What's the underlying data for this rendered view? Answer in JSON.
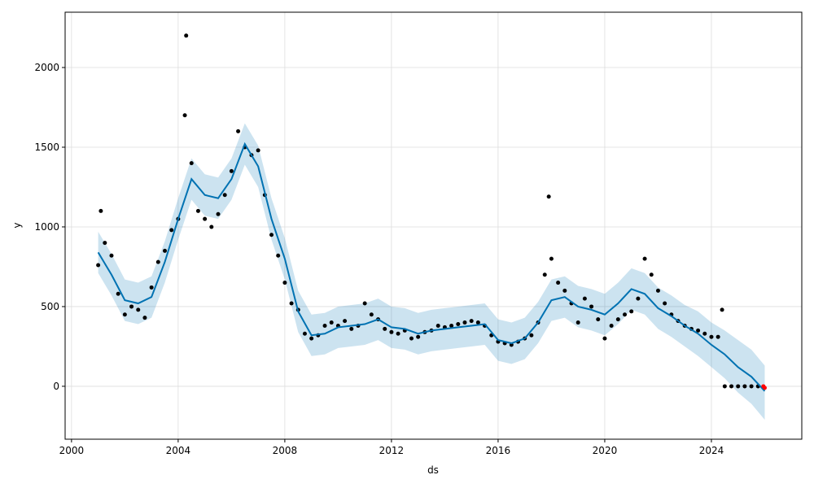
{
  "chart_data": {
    "type": "line",
    "xlabel": "ds",
    "ylabel": "y",
    "xlim": [
      1999.76,
      2027.39
    ],
    "ylim": [
      -332,
      2347
    ],
    "xticks": [
      2000,
      2004,
      2008,
      2012,
      2016,
      2020,
      2024
    ],
    "yticks": [
      0,
      500,
      1000,
      1500,
      2000
    ],
    "grid": true,
    "series": [
      {
        "type": "band",
        "color": "#0072B2",
        "x": [
          2001.0,
          2001.5,
          2002.0,
          2002.5,
          2003.0,
          2003.5,
          2004.0,
          2004.5,
          2005.0,
          2005.5,
          2006.0,
          2006.5,
          2007.0,
          2007.5,
          2008.0,
          2008.5,
          2009.0,
          2009.5,
          2010.0,
          2010.5,
          2011.0,
          2011.5,
          2012.0,
          2012.5,
          2013.0,
          2013.5,
          2014.0,
          2014.5,
          2015.0,
          2015.5,
          2016.0,
          2016.5,
          2017.0,
          2017.5,
          2018.0,
          2018.5,
          2019.0,
          2019.5,
          2020.0,
          2020.5,
          2021.0,
          2021.5,
          2022.0,
          2022.5,
          2023.0,
          2023.5,
          2024.0,
          2024.5,
          2025.0,
          2025.5,
          2026.0
        ],
        "lower": [
          710,
          570,
          410,
          390,
          430,
          650,
          920,
          1170,
          1070,
          1050,
          1170,
          1390,
          1250,
          920,
          670,
          340,
          190,
          200,
          240,
          250,
          260,
          290,
          240,
          230,
          200,
          220,
          230,
          240,
          250,
          260,
          160,
          140,
          170,
          270,
          410,
          430,
          370,
          350,
          320,
          390,
          480,
          450,
          360,
          310,
          250,
          190,
          120,
          50,
          -40,
          -110,
          -210
        ],
        "values": [
          840,
          700,
          540,
          520,
          560,
          780,
          1050,
          1300,
          1200,
          1180,
          1300,
          1520,
          1380,
          1050,
          800,
          470,
          320,
          330,
          370,
          380,
          390,
          420,
          370,
          360,
          330,
          350,
          360,
          370,
          380,
          390,
          290,
          270,
          300,
          400,
          540,
          560,
          500,
          480,
          450,
          520,
          610,
          580,
          490,
          440,
          380,
          330,
          260,
          200,
          120,
          60,
          -30
        ],
        "upper": [
          970,
          830,
          670,
          650,
          690,
          910,
          1180,
          1430,
          1330,
          1310,
          1430,
          1650,
          1510,
          1180,
          930,
          600,
          450,
          460,
          500,
          510,
          520,
          550,
          500,
          490,
          460,
          480,
          490,
          500,
          510,
          520,
          420,
          400,
          430,
          530,
          670,
          690,
          630,
          610,
          580,
          650,
          740,
          710,
          620,
          570,
          510,
          470,
          400,
          350,
          290,
          230,
          130
        ]
      },
      {
        "type": "scatter",
        "color": "#000000",
        "x": [
          2001.0,
          2001.1,
          2001.25,
          2001.5,
          2001.75,
          2002.0,
          2002.25,
          2002.5,
          2002.75,
          2003.0,
          2003.25,
          2003.5,
          2003.75,
          2004.0,
          2004.25,
          2004.3,
          2004.5,
          2004.75,
          2005.0,
          2005.25,
          2005.5,
          2005.75,
          2006.0,
          2006.25,
          2006.5,
          2006.75,
          2007.0,
          2007.25,
          2007.5,
          2007.75,
          2008.0,
          2008.25,
          2008.5,
          2008.75,
          2009.0,
          2009.25,
          2009.5,
          2009.75,
          2010.0,
          2010.25,
          2010.5,
          2010.75,
          2011.0,
          2011.25,
          2011.5,
          2011.75,
          2012.0,
          2012.25,
          2012.5,
          2012.75,
          2013.0,
          2013.25,
          2013.5,
          2013.75,
          2014.0,
          2014.25,
          2014.5,
          2014.75,
          2015.0,
          2015.25,
          2015.5,
          2015.75,
          2016.0,
          2016.25,
          2016.5,
          2016.75,
          2017.0,
          2017.25,
          2017.5,
          2017.75,
          2017.9,
          2018.0,
          2018.25,
          2018.5,
          2018.75,
          2019.0,
          2019.25,
          2019.5,
          2019.75,
          2020.0,
          2020.25,
          2020.5,
          2020.75,
          2021.0,
          2021.25,
          2021.5,
          2021.75,
          2022.0,
          2022.25,
          2022.5,
          2022.75,
          2023.0,
          2023.25,
          2023.5,
          2023.75,
          2024.0,
          2024.25,
          2024.4,
          2024.5,
          2024.75,
          2025.0,
          2025.25,
          2025.5,
          2025.75
        ],
        "values": [
          760,
          1100,
          900,
          820,
          580,
          450,
          500,
          480,
          430,
          620,
          780,
          850,
          980,
          1050,
          1700,
          2200,
          1400,
          1100,
          1050,
          1000,
          1080,
          1200,
          1350,
          1600,
          1500,
          1450,
          1480,
          1200,
          950,
          820,
          650,
          520,
          480,
          330,
          300,
          320,
          380,
          400,
          380,
          410,
          360,
          380,
          520,
          450,
          420,
          360,
          340,
          330,
          350,
          300,
          310,
          340,
          350,
          380,
          370,
          380,
          390,
          400,
          410,
          400,
          380,
          320,
          280,
          270,
          260,
          280,
          300,
          320,
          400,
          700,
          1190,
          800,
          650,
          600,
          520,
          400,
          550,
          500,
          420,
          300,
          380,
          420,
          450,
          470,
          550,
          800,
          700,
          600,
          520,
          450,
          410,
          380,
          360,
          350,
          330,
          310,
          310,
          480,
          0,
          0,
          0,
          0,
          0,
          0
        ]
      },
      {
        "type": "line",
        "color": "#0072B2",
        "x": [
          2001.0,
          2001.5,
          2002.0,
          2002.5,
          2003.0,
          2003.5,
          2004.0,
          2004.5,
          2005.0,
          2005.5,
          2006.0,
          2006.5,
          2007.0,
          2007.5,
          2008.0,
          2008.5,
          2009.0,
          2009.5,
          2010.0,
          2010.5,
          2011.0,
          2011.5,
          2012.0,
          2012.5,
          2013.0,
          2013.5,
          2014.0,
          2014.5,
          2015.0,
          2015.5,
          2016.0,
          2016.5,
          2017.0,
          2017.5,
          2018.0,
          2018.5,
          2019.0,
          2019.5,
          2020.0,
          2020.5,
          2021.0,
          2021.5,
          2022.0,
          2022.5,
          2023.0,
          2023.5,
          2024.0,
          2024.5,
          2025.0,
          2025.5,
          2026.0
        ],
        "values": [
          840,
          700,
          540,
          520,
          560,
          780,
          1050,
          1300,
          1200,
          1180,
          1300,
          1520,
          1380,
          1050,
          800,
          470,
          320,
          330,
          370,
          380,
          390,
          420,
          370,
          360,
          330,
          350,
          360,
          370,
          380,
          390,
          290,
          270,
          300,
          400,
          540,
          560,
          500,
          480,
          450,
          520,
          610,
          580,
          490,
          440,
          380,
          330,
          260,
          200,
          120,
          60,
          -30
        ]
      },
      {
        "type": "scatter",
        "color": "#ff0000",
        "x": [
          2025.95,
          2026.0
        ],
        "values": [
          0,
          -10
        ]
      }
    ]
  }
}
